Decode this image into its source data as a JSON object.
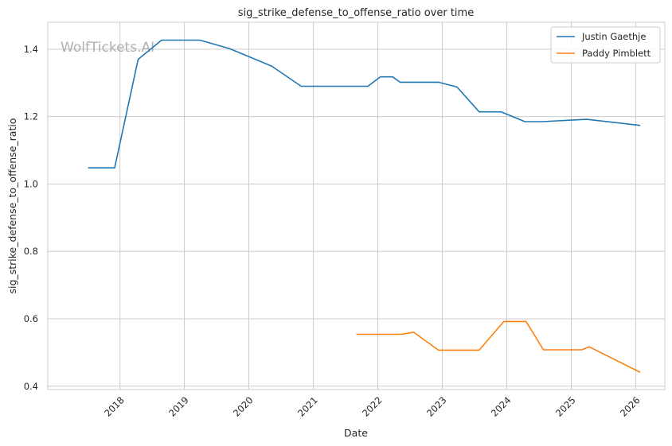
{
  "chart_data": {
    "type": "line",
    "title": "sig_strike_defense_to_offense_ratio over time",
    "xlabel": "Date",
    "ylabel": "sig_strike_defense_to_offense_ratio",
    "watermark": "WolfTickets.AI",
    "x_ticks": [
      "2018",
      "2019",
      "2020",
      "2021",
      "2022",
      "2023",
      "2024",
      "2025",
      "2026"
    ],
    "y_ticks": [
      "0.4",
      "0.6",
      "0.8",
      "1.0",
      "1.2",
      "1.4"
    ],
    "xlim": [
      "2016-11-18",
      "2026-06-15"
    ],
    "ylim": [
      0.39,
      1.48
    ],
    "grid": true,
    "legend_position": "top-right",
    "series": [
      {
        "name": "Justin Gaethje",
        "color": "#1f77b4",
        "points": [
          [
            "2017-07-07",
            1.048
          ],
          [
            "2017-12-02",
            1.048
          ],
          [
            "2018-04-14",
            1.37
          ],
          [
            "2018-08-25",
            1.427
          ],
          [
            "2019-03-30",
            1.427
          ],
          [
            "2019-09-14",
            1.402
          ],
          [
            "2020-05-09",
            1.35
          ],
          [
            "2020-10-24",
            1.29
          ],
          [
            "2021-11-06",
            1.29
          ],
          [
            "2022-01-15",
            1.318
          ],
          [
            "2022-03-26",
            1.318
          ],
          [
            "2022-05-07",
            1.302
          ],
          [
            "2022-12-10",
            1.302
          ],
          [
            "2023-03-25",
            1.288
          ],
          [
            "2023-07-29",
            1.214
          ],
          [
            "2023-12-01",
            1.214
          ],
          [
            "2024-04-13",
            1.185
          ],
          [
            "2024-07-20",
            1.185
          ],
          [
            "2025-03-29",
            1.192
          ],
          [
            "2026-01-24",
            1.174
          ]
        ]
      },
      {
        "name": "Paddy Pimblett",
        "color": "#ff7f0e",
        "points": [
          [
            "2021-09-04",
            0.554
          ],
          [
            "2022-03-19",
            0.554
          ],
          [
            "2022-05-14",
            0.554
          ],
          [
            "2022-07-23",
            0.56
          ],
          [
            "2022-12-10",
            0.507
          ],
          [
            "2023-07-29",
            0.507
          ],
          [
            "2023-12-16",
            0.592
          ],
          [
            "2024-04-20",
            0.592
          ],
          [
            "2024-07-27",
            0.508
          ],
          [
            "2025-03-01",
            0.508
          ],
          [
            "2025-04-12",
            0.517
          ],
          [
            "2026-01-24",
            0.442
          ]
        ]
      }
    ]
  }
}
